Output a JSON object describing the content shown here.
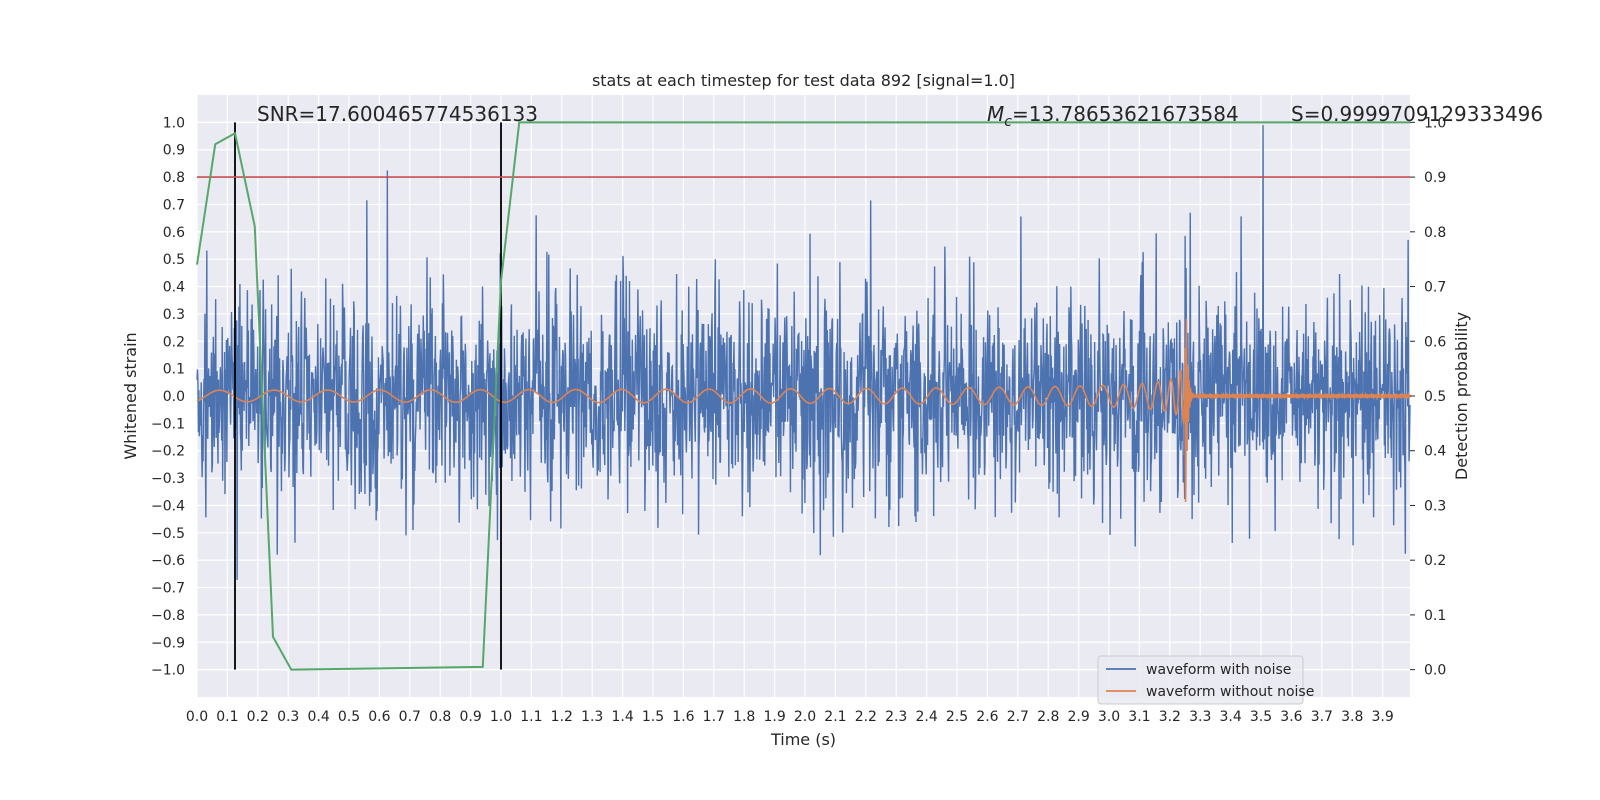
{
  "chart_data": {
    "type": "line",
    "title": "stats at each timestep for test data 892 [signal=1.0]",
    "xlabel": "Time (s)",
    "ylabel_left": "Whitened strain",
    "ylabel_right": "Detection probability",
    "xlim": [
      0.0,
      3.99
    ],
    "ylim_left": [
      -1.1,
      1.1
    ],
    "ylim_right": [
      -0.05,
      1.05
    ],
    "x_ticks": [
      "0.0",
      "0.1",
      "0.2",
      "0.3",
      "0.4",
      "0.5",
      "0.6",
      "0.7",
      "0.8",
      "0.9",
      "1.0",
      "1.1",
      "1.2",
      "1.3",
      "1.4",
      "1.5",
      "1.6",
      "1.7",
      "1.8",
      "1.9",
      "2.0",
      "2.1",
      "2.2",
      "2.3",
      "2.4",
      "2.5",
      "2.6",
      "2.7",
      "2.8",
      "2.9",
      "3.0",
      "3.1",
      "3.2",
      "3.3",
      "3.4",
      "3.5",
      "3.6",
      "3.7",
      "3.8",
      "3.9"
    ],
    "y_ticks_left": [
      "1.0",
      "0.9",
      "0.8",
      "0.7",
      "0.6",
      "0.5",
      "0.4",
      "0.3",
      "0.2",
      "0.1",
      "0.0",
      "−0.1",
      "−0.2",
      "−0.3",
      "−0.4",
      "−0.5",
      "−0.6",
      "−0.7",
      "−0.8",
      "−0.9",
      "−1.0"
    ],
    "y_ticks_right": [
      "1.0",
      "0.9",
      "0.8",
      "0.7",
      "0.6",
      "0.5",
      "0.4",
      "0.3",
      "0.2",
      "0.1",
      "0.0"
    ],
    "grid": true,
    "legend_placement": "lower-right",
    "annotations": {
      "snr": "SNR=17.600465774536133",
      "mc_symbol": "M",
      "mc_sub": "c",
      "mc_value": "=13.78653621673584",
      "s": "S=0.9999709129333496"
    },
    "series": [
      {
        "name": "waveform with noise",
        "axis": "left",
        "color": "#4c72b0",
        "kind": "noisy strain, amplitude mostly within ±0.5 with spikes to ±1.0"
      },
      {
        "name": "waveform without noise",
        "axis": "left",
        "color": "#dd8452",
        "kind": "inspiral chirp, merger at 3.25"
      },
      {
        "name": "",
        "axis": "right",
        "color": "#55a868",
        "x": [
          0.0,
          0.06,
          0.125,
          0.19,
          0.25,
          0.31,
          0.94,
          1.0,
          1.06,
          3.99
        ],
        "y": [
          0.74,
          0.96,
          0.98,
          0.81,
          0.06,
          0.0,
          0.005,
          0.71,
          1.0,
          1.0
        ]
      },
      {
        "name": "",
        "axis": "right",
        "color": "#c44e52",
        "kind": "threshold",
        "y": 0.9
      }
    ],
    "vlines": [
      0.125,
      1.0
    ],
    "merger_time": 3.25
  },
  "colors": {
    "plot_bg": "#eaeaf2",
    "grid": "#ffffff",
    "noise": "#4c72b0",
    "clean": "#dd8452",
    "prob": "#55a868",
    "threshold": "#c44e52",
    "vline": "#000000"
  }
}
